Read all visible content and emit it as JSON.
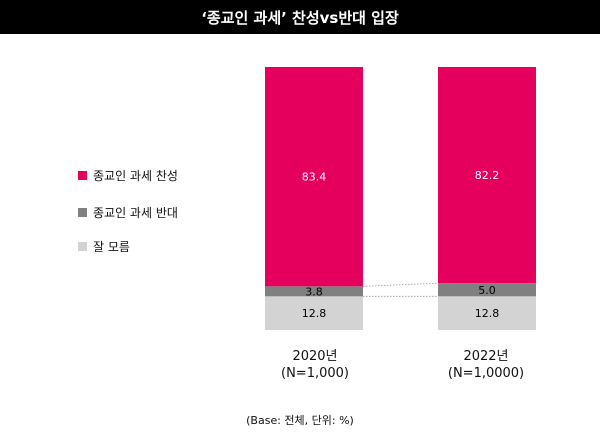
{
  "title": "‘종교인 과세’ 찬성vs반대 입장",
  "footnote": "(Base: 전체, 단위: %)",
  "colors": {
    "favor": "#e5005e",
    "oppose": "#808080",
    "unknown": "#d3d3d3"
  },
  "chart_data": {
    "type": "bar",
    "stacked": true,
    "categories": [
      "2020년",
      "2022년"
    ],
    "category_sublabels": [
      "(N=1,000)",
      "(N=1,0000)"
    ],
    "series": [
      {
        "name": "종교인 과세 찬성",
        "values": [
          83.4,
          82.2
        ],
        "labels": [
          "83.4",
          "82.2"
        ]
      },
      {
        "name": "종교인 과세 반대",
        "values": [
          3.8,
          5.0
        ],
        "labels": [
          "3.8",
          "5.0"
        ]
      },
      {
        "name": "잘 모름",
        "values": [
          12.8,
          12.8
        ],
        "labels": [
          "12.8",
          "12.8"
        ]
      }
    ],
    "ylim": [
      0,
      100
    ],
    "grid": false,
    "legend_position": "left"
  }
}
